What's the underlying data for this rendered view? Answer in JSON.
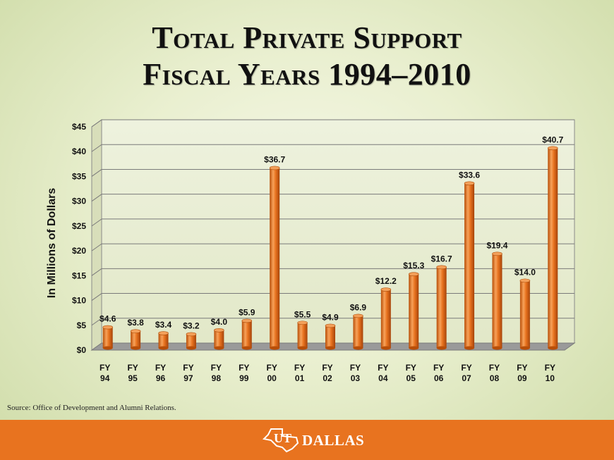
{
  "page": {
    "title_line1": "Total Private Support",
    "title_line2": "Fiscal Years 1994–2010",
    "source": "Source: Office of Development and Alumni Relations.",
    "logo_ut": "UT",
    "logo_text": "DALLAS",
    "footer_color": "#e8731f"
  },
  "chart_data": {
    "type": "bar",
    "ylabel": "In Millions of Dollars",
    "ylim": [
      0,
      45
    ],
    "yticks": [
      0,
      5,
      10,
      15,
      20,
      25,
      30,
      35,
      40,
      45
    ],
    "ytick_labels": [
      "$0",
      "$5",
      "$10",
      "$15",
      "$20",
      "$25",
      "$30",
      "$35",
      "$40",
      "$45"
    ],
    "grid": true,
    "bar_color": "#e8731f",
    "categories": [
      [
        "FY",
        "94"
      ],
      [
        "FY",
        "95"
      ],
      [
        "FY",
        "96"
      ],
      [
        "FY",
        "97"
      ],
      [
        "FY",
        "98"
      ],
      [
        "FY",
        "99"
      ],
      [
        "FY",
        "00"
      ],
      [
        "FY",
        "01"
      ],
      [
        "FY",
        "02"
      ],
      [
        "FY",
        "03"
      ],
      [
        "FY",
        "04"
      ],
      [
        "FY",
        "05"
      ],
      [
        "FY",
        "06"
      ],
      [
        "FY",
        "07"
      ],
      [
        "FY",
        "08"
      ],
      [
        "FY",
        "09"
      ],
      [
        "FY",
        "10"
      ]
    ],
    "values": [
      4.6,
      3.8,
      3.4,
      3.2,
      4.0,
      5.9,
      36.7,
      5.5,
      4.9,
      6.9,
      12.2,
      15.3,
      16.7,
      33.6,
      19.4,
      14.0,
      40.7
    ],
    "data_labels": [
      "$4.6",
      "$3.8",
      "$3.4",
      "$3.2",
      "$4.0",
      "$5.9",
      "$36.7",
      "$5.5",
      "$4.9",
      "$6.9",
      "$12.2",
      "$15.3",
      "$16.7",
      "$33.6",
      "$19.4",
      "$14.0",
      "$40.7"
    ]
  }
}
